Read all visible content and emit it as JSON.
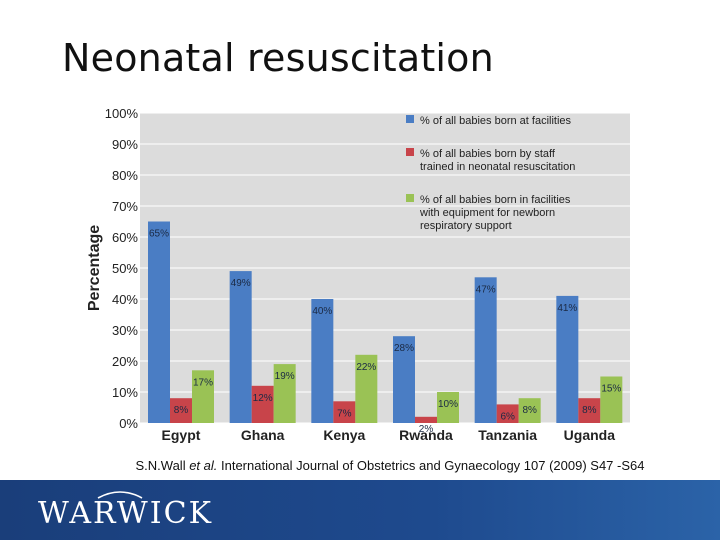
{
  "slide": {
    "title": "Neonatal resuscitation",
    "citation_prefix": "S.N.Wall ",
    "citation_italic": "et al.",
    "citation_rest": " International Journal of Obstetrics and Gynaecology 107 (2009) S47 -S64",
    "logo_text": "WARWICK"
  },
  "colors": {
    "blue": "#4a7dc4",
    "red": "#c8444a",
    "green": "#9ac255",
    "plot_bg": "#dcdcdc",
    "footer": "#1e4a8e"
  },
  "chart_data": {
    "type": "bar",
    "ylabel": "Percentage",
    "ylim": [
      0,
      100
    ],
    "yticks": [
      "0%",
      "10%",
      "20%",
      "30%",
      "40%",
      "50%",
      "60%",
      "70%",
      "80%",
      "90%",
      "100%"
    ],
    "categories": [
      "Egypt",
      "Ghana",
      "Kenya",
      "Rwanda",
      "Tanzania",
      "Uganda"
    ],
    "legend_position": "top-right",
    "series": [
      {
        "name": "% of all babies born at facilities",
        "color": "#4a7dc4",
        "values": [
          65,
          49,
          40,
          28,
          47,
          41
        ],
        "labels": [
          "65%",
          "49%",
          "40%",
          "28%",
          "47%",
          "41%"
        ]
      },
      {
        "name": "% of all babies born by staff trained in neonatal resuscitation",
        "color": "#c8444a",
        "values": [
          8,
          12,
          7,
          2,
          6,
          8
        ],
        "labels": [
          "8%",
          "12%",
          "7%",
          "2%",
          "6%",
          "8%"
        ]
      },
      {
        "name": "% of all babies born in facilities with equipment for newborn respiratory support",
        "color": "#9ac255",
        "values": [
          17,
          19,
          22,
          10,
          8,
          15
        ],
        "labels": [
          "17%",
          "19%",
          "22%",
          "10%",
          "8%",
          "15%"
        ]
      }
    ]
  }
}
